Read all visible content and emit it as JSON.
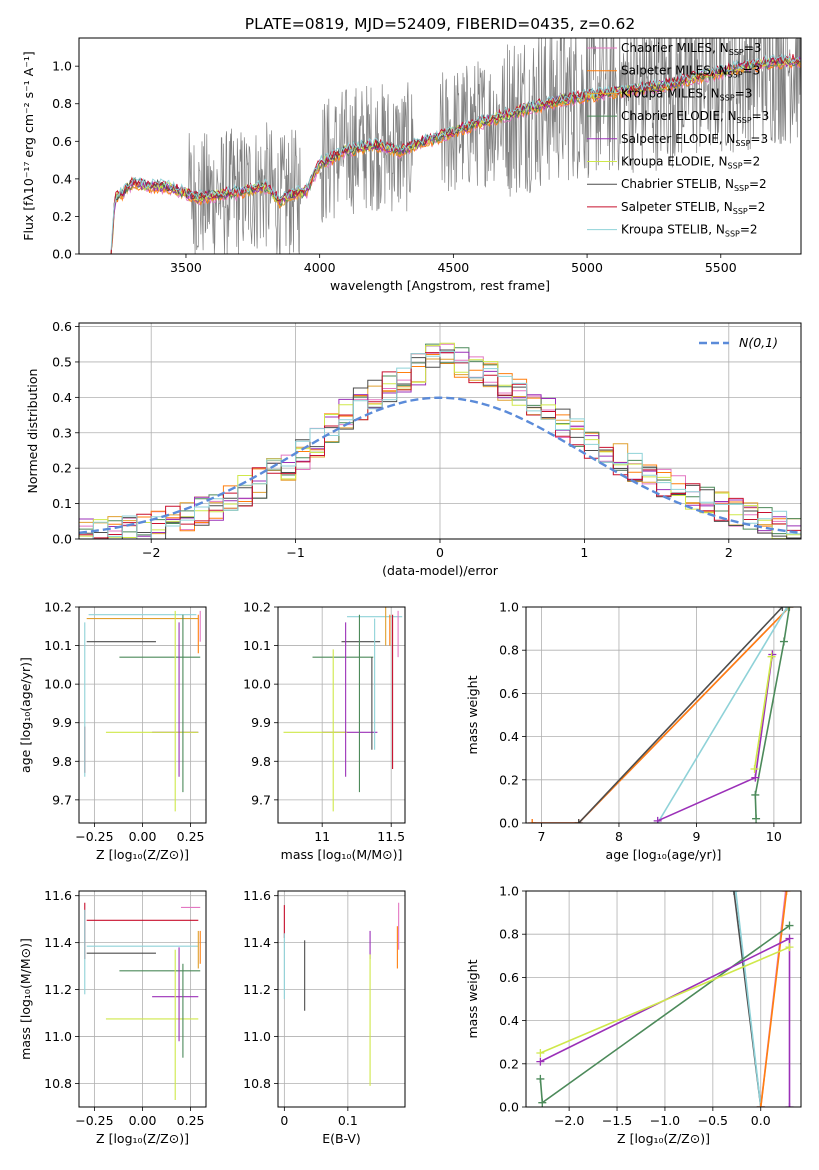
{
  "title": "PLATE=0819, MJD=52409, FIBERID=0435, z=0.62",
  "colors": {
    "Chabrier MILES": "#e377c2",
    "Salpeter MILES": "#ff7f0e",
    "Kroupa MILES": "#e0a030",
    "Chabrier ELODIE": "#4c8a5a",
    "Salpeter ELODIE": "#9b30b8",
    "Kroupa ELODIE": "#cfe84a",
    "Chabrier STELIB": "#4d4d4d",
    "Salpeter STELIB": "#c8102e",
    "Kroupa STELIB": "#8fd2d8",
    "spectrum_data": "#808080",
    "spectrum_accent": "#e8925a",
    "gauss": "#5b8bd9"
  },
  "chart_data": [
    {
      "id": "spectrum",
      "type": "line",
      "xlabel": "wavelength [Angstrom, rest frame]",
      "ylabel": "Flux [fλ10⁻¹⁷ erg cm⁻² s⁻¹ A⁻¹]",
      "xlim": [
        3100,
        5800
      ],
      "ylim": [
        0,
        1.15
      ],
      "xticks": [
        3500,
        4000,
        4500,
        5000,
        5500
      ],
      "yticks": [
        0.0,
        0.2,
        0.4,
        0.6,
        0.8,
        1.0
      ],
      "grid": false,
      "legend_position": "right",
      "legend": [
        {
          "name": "Chabrier MILES",
          "nssp": "3"
        },
        {
          "name": "Salpeter MILES",
          "nssp": "3"
        },
        {
          "name": "Kroupa MILES",
          "nssp": "3"
        },
        {
          "name": "Chabrier ELODIE",
          "nssp": "3"
        },
        {
          "name": "Salpeter ELODIE",
          "nssp": "3"
        },
        {
          "name": "Kroupa ELODIE",
          "nssp": "2"
        },
        {
          "name": "Chabrier STELIB",
          "nssp": "2"
        },
        {
          "name": "Salpeter STELIB",
          "nssp": "2"
        },
        {
          "name": "Kroupa STELIB",
          "nssp": "2"
        }
      ],
      "spectrum_range": [
        3220,
        5800
      ],
      "continuum_points": [
        [
          3220,
          0.0
        ],
        [
          3235,
          0.3
        ],
        [
          3260,
          0.32
        ],
        [
          3300,
          0.38
        ],
        [
          3350,
          0.36
        ],
        [
          3400,
          0.36
        ],
        [
          3450,
          0.35
        ],
        [
          3500,
          0.32
        ],
        [
          3550,
          0.3
        ],
        [
          3600,
          0.31
        ],
        [
          3700,
          0.33
        ],
        [
          3800,
          0.36
        ],
        [
          3850,
          0.28
        ],
        [
          3900,
          0.32
        ],
        [
          3950,
          0.33
        ],
        [
          4000,
          0.48
        ],
        [
          4100,
          0.55
        ],
        [
          4200,
          0.58
        ],
        [
          4300,
          0.55
        ],
        [
          4400,
          0.6
        ],
        [
          4500,
          0.65
        ],
        [
          4600,
          0.7
        ],
        [
          4700,
          0.74
        ],
        [
          4800,
          0.78
        ],
        [
          4900,
          0.82
        ],
        [
          5000,
          0.84
        ],
        [
          5100,
          0.86
        ],
        [
          5200,
          0.88
        ],
        [
          5300,
          0.9
        ],
        [
          5400,
          0.94
        ],
        [
          5500,
          0.97
        ],
        [
          5600,
          1.0
        ],
        [
          5700,
          1.02
        ],
        [
          5800,
          1.03
        ]
      ]
    },
    {
      "id": "residuals",
      "type": "line",
      "xlabel": "(data-model)/error",
      "ylabel": "Normed distribution",
      "xlim": [
        -2.5,
        2.5
      ],
      "ylim": [
        0,
        0.61
      ],
      "xticks": [
        -2,
        -1,
        0,
        1,
        2
      ],
      "yticks": [
        0.0,
        0.1,
        0.2,
        0.3,
        0.4,
        0.5,
        0.6
      ],
      "grid": true,
      "legend_position": "top-right",
      "legend": [
        {
          "name": "N(0,1)"
        }
      ],
      "gauss": {
        "mu": 0,
        "sigma": 1
      },
      "bin_width": 0.1,
      "envelope_points": [
        [
          -2.5,
          0.01
        ],
        [
          -2.0,
          0.03
        ],
        [
          -1.5,
          0.1
        ],
        [
          -1.0,
          0.22
        ],
        [
          -0.6,
          0.37
        ],
        [
          -0.3,
          0.44
        ],
        [
          0.0,
          0.52
        ],
        [
          0.3,
          0.47
        ],
        [
          0.6,
          0.4
        ],
        [
          1.0,
          0.28
        ],
        [
          1.5,
          0.17
        ],
        [
          2.0,
          0.08
        ],
        [
          2.5,
          0.02
        ]
      ]
    },
    {
      "id": "age-vs-Z",
      "type": "scatter",
      "xlabel": "Z [log₁₀(Z/Z⊙)]",
      "ylabel": "age  [log₁₀(age/yr)]",
      "xlim": [
        -0.33,
        0.33
      ],
      "ylim": [
        9.64,
        10.2
      ],
      "xticks": [
        -0.25,
        0.0,
        0.25
      ],
      "xticklabels": [
        "−0.25",
        "0.00",
        "0.25"
      ],
      "yticks": [
        9.7,
        9.8,
        9.9,
        10.0,
        10.1,
        10.2
      ],
      "grid": true,
      "points": [
        {
          "model": "Chabrier STELIB",
          "x": -0.11,
          "xerr": 0.18,
          "y": 10.11,
          "yerr": 0.0
        },
        {
          "model": "Chabrier ELODIE",
          "x": 0.09,
          "xerr": 0.21,
          "y": 10.07,
          "yerr": 0.0
        },
        {
          "model": "Kroupa STELIB",
          "x": 0.0,
          "xerr": 0.28,
          "y": 10.18,
          "yerr": 0.0
        },
        {
          "model": "Kroupa MILES",
          "x": 0.0,
          "xerr": 0.29,
          "y": 10.17,
          "yerr": 0.0
        },
        {
          "model": "Salpeter ELODIE",
          "x": 0.17,
          "xerr": 0.12,
          "y": 9.875,
          "yerr": 0.0
        },
        {
          "model": "Kroupa ELODIE",
          "x": 0.05,
          "xerr": 0.24,
          "y": 9.875,
          "yerr": 0.0
        },
        {
          "model": "Salpeter STELIB",
          "x": -0.3,
          "xerr": 0.0,
          "y": 9.83,
          "yerr": 0.06
        },
        {
          "model": "Kroupa STELIB",
          "x": -0.3,
          "xerr": 0.0,
          "y": 9.96,
          "yerr": 0.2
        },
        {
          "model": "Salpeter ELODIE",
          "x": 0.19,
          "xerr": 0.0,
          "y": 9.96,
          "yerr": 0.2
        },
        {
          "model": "Kroupa ELODIE",
          "x": 0.17,
          "xerr": 0.0,
          "y": 9.93,
          "yerr": 0.26
        },
        {
          "model": "Chabrier ELODIE",
          "x": 0.21,
          "xerr": 0.0,
          "y": 9.95,
          "yerr": 0.23
        },
        {
          "model": "Salpeter MILES",
          "x": 0.29,
          "xerr": 0.0,
          "y": 10.13,
          "yerr": 0.05
        },
        {
          "model": "Chabrier MILES",
          "x": 0.3,
          "xerr": 0.0,
          "y": 10.15,
          "yerr": 0.04
        }
      ]
    },
    {
      "id": "age-vs-mass",
      "type": "scatter",
      "xlabel": "mass [log₁₀(M/M⊙)]",
      "ylabel": "",
      "xlim": [
        10.68,
        11.6
      ],
      "ylim": [
        9.64,
        10.2
      ],
      "xticks": [
        11.0,
        11.5
      ],
      "yticks": [
        9.7,
        9.8,
        9.9,
        10.0,
        10.1,
        10.2
      ],
      "grid": true,
      "points": [
        {
          "model": "Kroupa STELIB",
          "x": 11.38,
          "xerr": 0.2,
          "y": 10.175,
          "yerr": 0.0
        },
        {
          "model": "Chabrier STELIB",
          "x": 11.28,
          "xerr": 0.14,
          "y": 10.11,
          "yerr": 0.0
        },
        {
          "model": "Chabrier ELODIE",
          "x": 11.15,
          "xerr": 0.22,
          "y": 10.07,
          "yerr": 0.0
        },
        {
          "model": "Salpeter ELODIE",
          "x": 11.2,
          "xerr": 0.2,
          "y": 9.875,
          "yerr": 0.0
        },
        {
          "model": "Kroupa ELODIE",
          "x": 10.95,
          "xerr": 0.23,
          "y": 9.875,
          "yerr": 0.0
        },
        {
          "model": "Salpeter STELIB",
          "x": 11.51,
          "xerr": 0.0,
          "y": 9.98,
          "yerr": 0.2
        },
        {
          "model": "Kroupa ELODIE",
          "x": 11.08,
          "xerr": 0.0,
          "y": 9.88,
          "yerr": 0.21
        },
        {
          "model": "Salpeter ELODIE",
          "x": 11.17,
          "xerr": 0.0,
          "y": 9.96,
          "yerr": 0.2
        },
        {
          "model": "Chabrier ELODIE",
          "x": 11.27,
          "xerr": 0.0,
          "y": 9.95,
          "yerr": 0.23
        },
        {
          "model": "Chabrier STELIB",
          "x": 11.36,
          "xerr": 0.0,
          "y": 9.95,
          "yerr": 0.12
        },
        {
          "model": "Kroupa STELIB",
          "x": 11.38,
          "xerr": 0.0,
          "y": 10.0,
          "yerr": 0.17
        },
        {
          "model": "Kroupa MILES",
          "x": 11.46,
          "xerr": 0.0,
          "y": 10.15,
          "yerr": 0.05
        },
        {
          "model": "Salpeter MILES",
          "x": 11.49,
          "xerr": 0.0,
          "y": 10.14,
          "yerr": 0.04
        },
        {
          "model": "Chabrier MILES",
          "x": 11.55,
          "xerr": 0.0,
          "y": 10.13,
          "yerr": 0.06
        }
      ]
    },
    {
      "id": "massweight-vs-age",
      "type": "line",
      "xlabel": "age  [log₁₀(age/yr)]",
      "ylabel": "mass weight",
      "xlim": [
        6.8,
        10.35
      ],
      "ylim": [
        0,
        1.0
      ],
      "xticks": [
        7,
        8,
        9,
        10
      ],
      "yticks": [
        0.0,
        0.2,
        0.4,
        0.6,
        0.8,
        1.0
      ],
      "grid": true,
      "series": [
        {
          "model": "Chabrier MILES",
          "points": [
            [
              6.88,
              0.0
            ],
            [
              7.48,
              0.0
            ],
            [
              10.2,
              1.0
            ]
          ]
        },
        {
          "model": "Salpeter MILES",
          "points": [
            [
              6.88,
              0.0
            ],
            [
              7.48,
              0.0
            ],
            [
              10.2,
              1.0
            ]
          ]
        },
        {
          "model": "Chabrier STELIB",
          "points": [
            [
              7.48,
              0.0
            ],
            [
              10.11,
              1.0
            ]
          ]
        },
        {
          "model": "Kroupa STELIB",
          "points": [
            [
              8.5,
              0.0
            ],
            [
              10.17,
              1.0
            ]
          ]
        },
        {
          "model": "Chabrier ELODIE",
          "points": [
            [
              9.77,
              0.02
            ],
            [
              9.76,
              0.13
            ],
            [
              10.13,
              0.84
            ],
            [
              10.2,
              1.0
            ]
          ]
        },
        {
          "model": "Salpeter ELODIE",
          "points": [
            [
              8.5,
              0.01
            ],
            [
              9.76,
              0.21
            ],
            [
              9.98,
              0.78
            ]
          ]
        },
        {
          "model": "Kroupa ELODIE",
          "points": [
            [
              9.75,
              0.25
            ],
            [
              9.97,
              0.77
            ]
          ]
        }
      ]
    },
    {
      "id": "mass-vs-Z",
      "type": "scatter",
      "xlabel": "Z [log₁₀(Z/Z⊙)]",
      "ylabel": "mass [log₁₀(M/M⊙)]",
      "xlim": [
        -0.33,
        0.33
      ],
      "ylim": [
        10.7,
        11.62
      ],
      "xticks": [
        -0.25,
        0.0,
        0.25
      ],
      "xticklabels": [
        "−0.25",
        "0.00",
        "0.25"
      ],
      "yticks": [
        10.8,
        11.0,
        11.2,
        11.4,
        11.6
      ],
      "grid": true,
      "points": [
        {
          "model": "Salpeter STELIB",
          "x": 0.0,
          "xerr": 0.29,
          "y": 11.495,
          "yerr": 0.0
        },
        {
          "model": "Chabrier MILES",
          "x": 0.25,
          "xerr": 0.05,
          "y": 11.55,
          "yerr": 0.0
        },
        {
          "model": "Kroupa STELIB",
          "x": 0.0,
          "xerr": 0.29,
          "y": 11.385,
          "yerr": 0.0
        },
        {
          "model": "Chabrier STELIB",
          "x": -0.11,
          "xerr": 0.18,
          "y": 11.355,
          "yerr": 0.0
        },
        {
          "model": "Chabrier ELODIE",
          "x": 0.09,
          "xerr": 0.21,
          "y": 11.28,
          "yerr": 0.0
        },
        {
          "model": "Salpeter ELODIE",
          "x": 0.17,
          "xerr": 0.12,
          "y": 11.17,
          "yerr": 0.0
        },
        {
          "model": "Kroupa ELODIE",
          "x": 0.05,
          "xerr": 0.24,
          "y": 11.075,
          "yerr": 0.0
        },
        {
          "model": "Salpeter STELIB",
          "x": -0.3,
          "xerr": 0.0,
          "y": 11.45,
          "yerr": 0.12
        },
        {
          "model": "Kroupa STELIB",
          "x": -0.3,
          "xerr": 0.0,
          "y": 11.36,
          "yerr": 0.18
        },
        {
          "model": "Kroupa ELODIE",
          "x": 0.17,
          "xerr": 0.0,
          "y": 11.05,
          "yerr": 0.32
        },
        {
          "model": "Chabrier ELODIE",
          "x": 0.21,
          "xerr": 0.0,
          "y": 11.11,
          "yerr": 0.2
        },
        {
          "model": "Salpeter ELODIE",
          "x": 0.19,
          "xerr": 0.0,
          "y": 11.18,
          "yerr": 0.2
        },
        {
          "model": "Kroupa MILES",
          "x": 0.29,
          "xerr": 0.0,
          "y": 11.37,
          "yerr": 0.08
        },
        {
          "model": "Salpeter MILES",
          "x": 0.3,
          "xerr": 0.0,
          "y": 11.38,
          "yerr": 0.07
        }
      ]
    },
    {
      "id": "mass-vs-ebv",
      "type": "scatter",
      "xlabel": "E(B-V)",
      "ylabel": "",
      "xlim": [
        -0.01,
        0.19
      ],
      "ylim": [
        10.7,
        11.62
      ],
      "xticks": [
        0.0,
        0.1
      ],
      "yticks": [
        10.8,
        11.0,
        11.2,
        11.4,
        11.6
      ],
      "grid": true,
      "points": [
        {
          "model": "Salpeter STELIB",
          "x": 0.0,
          "xerr": 0.0,
          "y": 11.49,
          "yerr": 0.07
        },
        {
          "model": "Kroupa STELIB",
          "x": 0.0,
          "xerr": 0.0,
          "y": 11.3,
          "yerr": 0.14
        },
        {
          "model": "Chabrier STELIB",
          "x": 0.032,
          "xerr": 0.0,
          "y": 11.26,
          "yerr": 0.15
        },
        {
          "model": "Salpeter ELODIE",
          "x": 0.135,
          "xerr": 0.0,
          "y": 11.39,
          "yerr": 0.06
        },
        {
          "model": "Kroupa ELODIE",
          "x": 0.135,
          "xerr": 0.0,
          "y": 11.07,
          "yerr": 0.28
        },
        {
          "model": "Chabrier MILES",
          "x": 0.18,
          "xerr": 0.0,
          "y": 11.47,
          "yerr": 0.1
        },
        {
          "model": "Salpeter MILES",
          "x": 0.178,
          "xerr": 0.0,
          "y": 11.38,
          "yerr": 0.09
        }
      ]
    },
    {
      "id": "massweight-vs-Z",
      "type": "line",
      "xlabel": "Z [log₁₀(Z/Z⊙)]",
      "ylabel": "mass weight",
      "xlim": [
        -2.45,
        0.42
      ],
      "ylim": [
        0,
        1.0
      ],
      "xticks": [
        -2.0,
        -1.5,
        -1.0,
        -0.5,
        0.0
      ],
      "xticklabels": [
        "−2.0",
        "−1.5",
        "−1.0",
        "−0.5",
        "0.0"
      ],
      "yticks": [
        0.0,
        0.2,
        0.4,
        0.6,
        0.8,
        1.0
      ],
      "grid": true,
      "series": [
        {
          "model": "Chabrier STELIB",
          "points": [
            [
              -0.28,
              1.0
            ],
            [
              0.0,
              0.0
            ]
          ]
        },
        {
          "model": "Kroupa STELIB",
          "points": [
            [
              -0.26,
              1.0
            ],
            [
              0.0,
              0.0
            ]
          ]
        },
        {
          "model": "Chabrier MILES",
          "points": [
            [
              0.0,
              0.0
            ],
            [
              0.26,
              1.0
            ]
          ]
        },
        {
          "model": "Salpeter MILES",
          "points": [
            [
              0.0,
              0.0
            ],
            [
              0.27,
              1.0
            ]
          ]
        },
        {
          "model": "Chabrier ELODIE",
          "points": [
            [
              -2.3,
              0.13
            ],
            [
              -2.28,
              0.02
            ],
            [
              0.3,
              0.84
            ]
          ]
        },
        {
          "model": "Salpeter ELODIE",
          "points": [
            [
              -2.3,
              0.21
            ],
            [
              0.3,
              0.78
            ],
            [
              0.3,
              0.0
            ]
          ]
        },
        {
          "model": "Kroupa ELODIE",
          "points": [
            [
              -2.3,
              0.25
            ],
            [
              0.3,
              0.74
            ]
          ]
        }
      ]
    }
  ]
}
